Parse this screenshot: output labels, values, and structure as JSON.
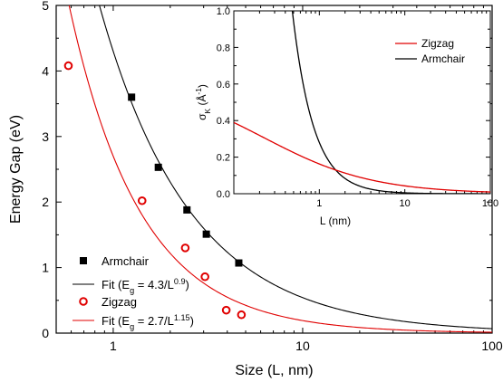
{
  "chart_data": [
    {
      "type": "scatter",
      "xlabel": "Size (L, nm)",
      "ylabel": "Energy Gap (eV)",
      "xscale": "log",
      "xlim": [
        0.5,
        100
      ],
      "ylim": [
        0,
        5
      ],
      "x_ticks": [
        1,
        10,
        100
      ],
      "x_tick_labels": [
        "1",
        "10",
        "100"
      ],
      "y_ticks": [
        0,
        1,
        2,
        3,
        4,
        5
      ],
      "y_tick_labels": [
        "0",
        "1",
        "2",
        "3",
        "4",
        "5"
      ],
      "legend_position": "bottom-left",
      "series": [
        {
          "name": "Armchair",
          "kind": "points",
          "marker": "filled-square",
          "color": "#000000",
          "x": [
            1.25,
            1.73,
            2.45,
            3.1,
            4.6
          ],
          "y": [
            3.6,
            2.53,
            1.88,
            1.51,
            1.07
          ]
        },
        {
          "name": "Fit (E_g = 4.3/L^0.9)",
          "kind": "fit",
          "color": "#000000",
          "coefficient": 4.3,
          "exponent": 0.9
        },
        {
          "name": "Zigzag",
          "kind": "points",
          "marker": "open-circle",
          "color": "#e00000",
          "x": [
            0.58,
            1.42,
            2.4,
            3.05,
            3.95,
            4.75
          ],
          "y": [
            4.08,
            2.02,
            1.3,
            0.86,
            0.35,
            0.28
          ]
        },
        {
          "name": "Fit (E_g = 2.7/L^1.15)",
          "kind": "fit",
          "color": "#e00000",
          "coefficient": 2.7,
          "exponent": 1.15
        }
      ],
      "legend": {
        "armchair": "Armchair",
        "fit1_prefix": "Fit (E",
        "fit1_sub": "g",
        "fit1_mid": " = 4.3/L",
        "fit1_sup": "0.9",
        "fit1_end": ")",
        "zigzag": "Zigzag",
        "fit2_prefix": "Fit (E",
        "fit2_sub": "g",
        "fit2_mid": " = 2.7/L",
        "fit2_sup": "1.15",
        "fit2_end": ")"
      }
    },
    {
      "type": "line",
      "xlabel": "L (nm)",
      "ylabel_main": "σ",
      "ylabel_sub": "K",
      "ylabel_unit_open": " (Å",
      "ylabel_unit_sup": "-1",
      "ylabel_unit_close": ")",
      "xscale": "log",
      "xlim": [
        0.1,
        100
      ],
      "ylim": [
        0,
        1
      ],
      "x_ticks": [
        1,
        10,
        100
      ],
      "x_tick_labels": [
        "1",
        "10",
        "100"
      ],
      "y_ticks": [
        0,
        0.2,
        0.4,
        0.6,
        0.8,
        1.0
      ],
      "y_tick_labels": [
        "0.0",
        "0.2",
        "0.4",
        "0.6",
        "0.8",
        "1.0"
      ],
      "legend_position": "top-right",
      "series": [
        {
          "name": "Zigzag",
          "color": "#e00000"
        },
        {
          "name": "Armchair",
          "color": "#000000"
        }
      ]
    }
  ]
}
